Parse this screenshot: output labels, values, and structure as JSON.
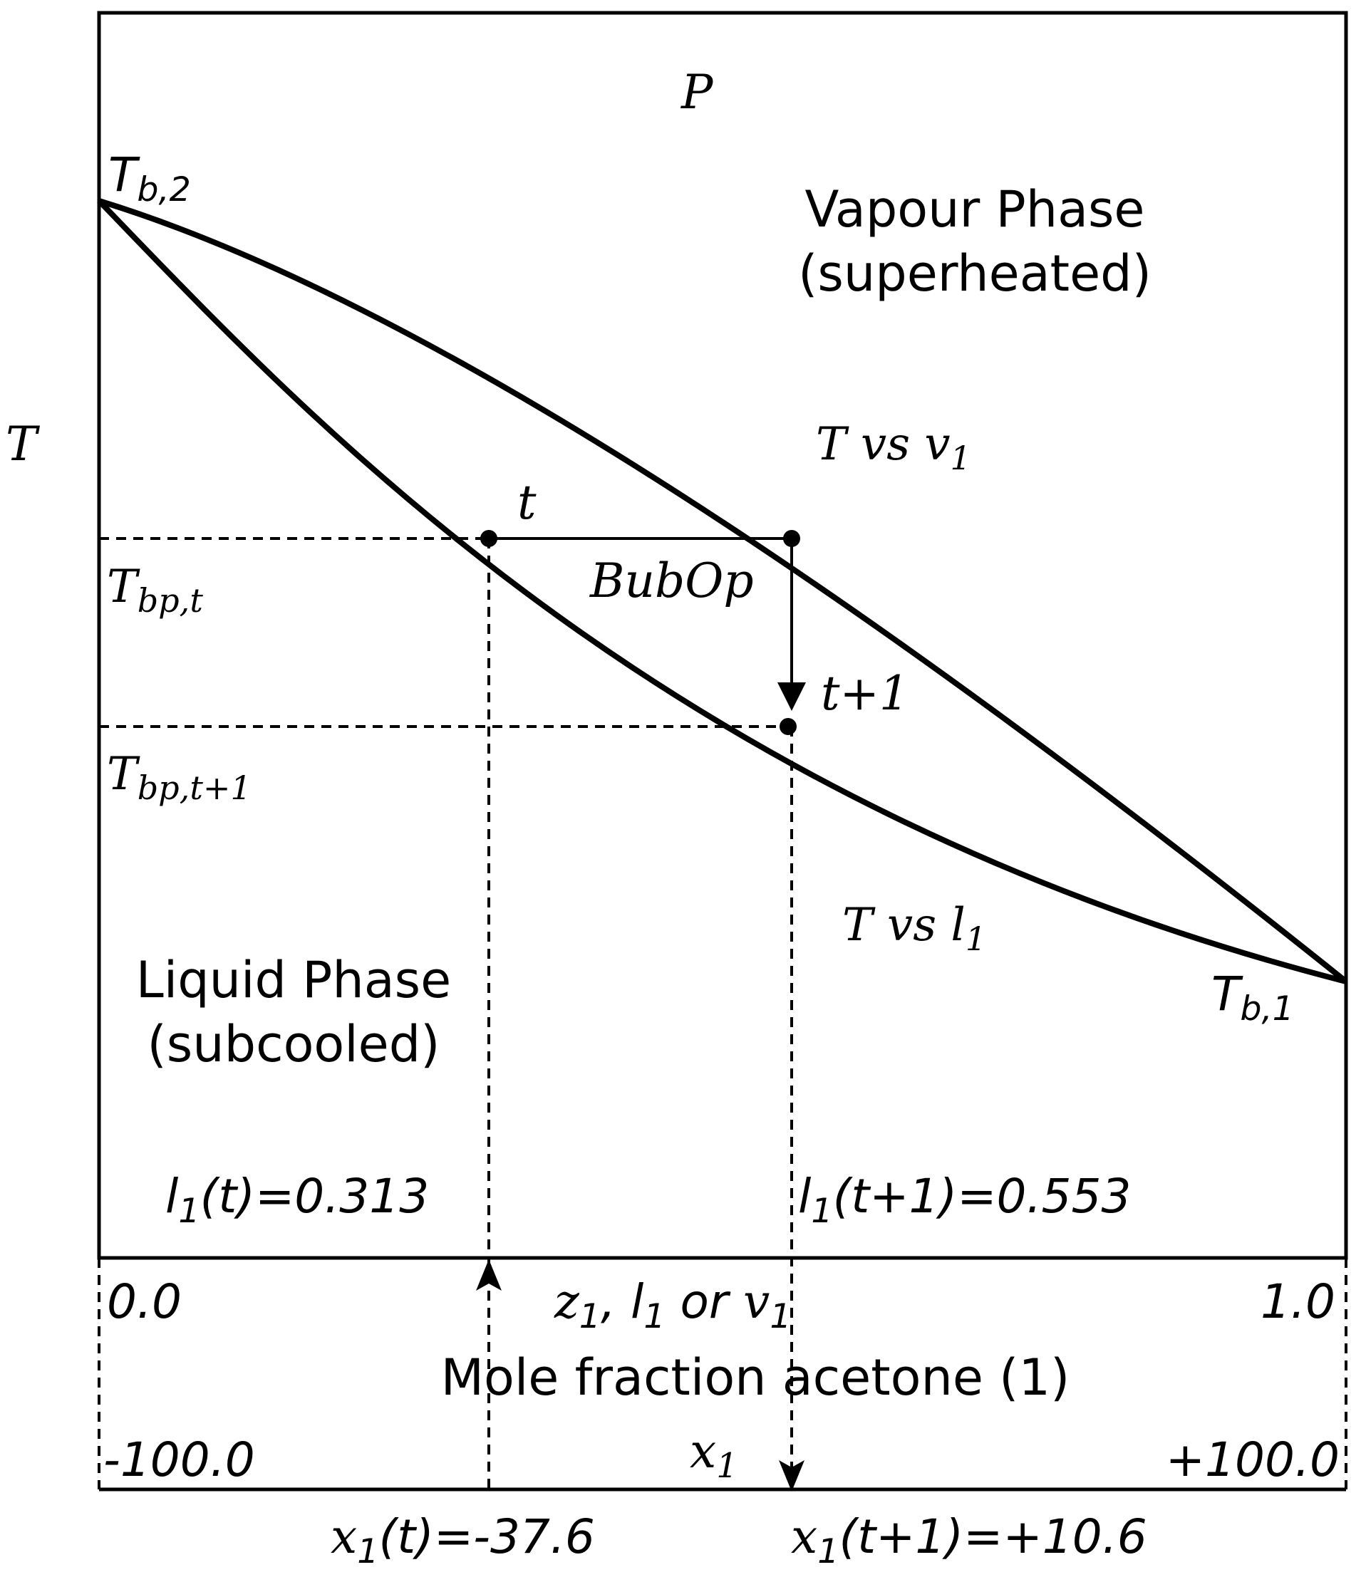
{
  "pressure_label": "P",
  "temperature_axis_label": "T",
  "boiling_point_2": {
    "main": "T",
    "sub": "b,2"
  },
  "boiling_point_1": {
    "main": "T",
    "sub": "b,1"
  },
  "vapour_phase": {
    "line1": "Vapour Phase",
    "line2": "(superheated)"
  },
  "liquid_phase": {
    "line1": "Liquid Phase",
    "line2": "(subcooled)"
  },
  "dew_curve_label": {
    "pre": "T vs v",
    "sub": "1"
  },
  "bubble_curve_label": {
    "pre": "T vs l",
    "sub": "1"
  },
  "point_t_label": "t",
  "point_t1_label": "t+1",
  "operation_label": "BubOp",
  "tbp_t": {
    "main": "T",
    "sub": "bp,t"
  },
  "tbp_t1": {
    "main": "T",
    "sub": "bp,t+1"
  },
  "l1_t": {
    "pre": "l",
    "sub": "1",
    "post": "(t)=0.313"
  },
  "l1_t1": {
    "pre": "l",
    "sub": "1",
    "post": "(t+1)=0.553"
  },
  "x_axis": {
    "min_label": "0.0",
    "max_label": "1.0",
    "var_label": {
      "z": "z",
      "z_sub": "1",
      "mid": ", l",
      "l_sub": "1",
      "or": " or ",
      "v": "v",
      "v_sub": "1"
    },
    "title": "Mole fraction acetone (1)"
  },
  "x1_axis": {
    "min_label": "-100.0",
    "max_label": "+100.0",
    "var_label": {
      "pre": "x",
      "sub": "1"
    }
  },
  "x1_t": {
    "pre": "x",
    "sub": "1",
    "post": "(t)=-37.6"
  },
  "x1_t1": {
    "pre": "x",
    "sub": "1",
    "post": "(t+1)=+10.6"
  }
}
